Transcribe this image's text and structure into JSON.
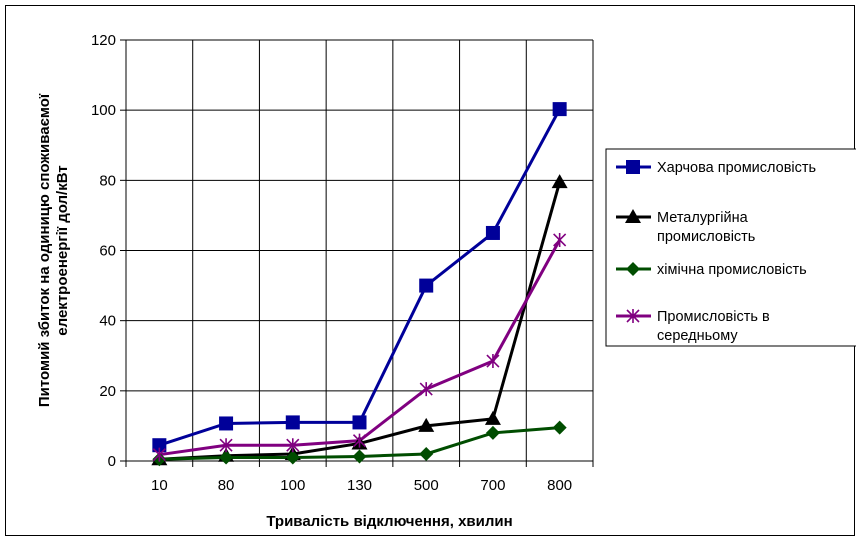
{
  "chart_data": {
    "type": "line",
    "categories": [
      "10",
      "80",
      "100",
      "130",
      "500",
      "700",
      "800"
    ],
    "xlabel": "Тривалість відключення, хвилин",
    "ylabel_lines": [
      "Питомий збиток на одиницю споживаємої",
      "електроенергії дол/кВт"
    ],
    "ylim": [
      0,
      120
    ],
    "yticks": [
      0,
      20,
      40,
      60,
      80,
      100,
      120
    ],
    "grid": true,
    "legend_position": "right",
    "series": [
      {
        "name_lines": [
          "Харчова промисловість"
        ],
        "color": "#000099",
        "marker": "square",
        "values": [
          4.5,
          10.7,
          11.0,
          11.0,
          50.0,
          65.0,
          100.3
        ]
      },
      {
        "name_lines": [
          "Металургійна",
          "промисловість"
        ],
        "color": "#000000",
        "marker": "triangle",
        "values": [
          0.5,
          1.5,
          2.0,
          5.0,
          10.0,
          12.0,
          79.5
        ]
      },
      {
        "name_lines": [
          "хімічна промисловість"
        ],
        "color": "#004d00",
        "marker": "diamond",
        "values": [
          0.5,
          1.0,
          1.0,
          1.3,
          2.0,
          8.0,
          9.5
        ]
      },
      {
        "name_lines": [
          "Промисловість в",
          "середньому"
        ],
        "color": "#800080",
        "marker": "star",
        "values": [
          1.8,
          4.5,
          4.5,
          5.8,
          20.5,
          28.5,
          63.0
        ]
      }
    ]
  }
}
